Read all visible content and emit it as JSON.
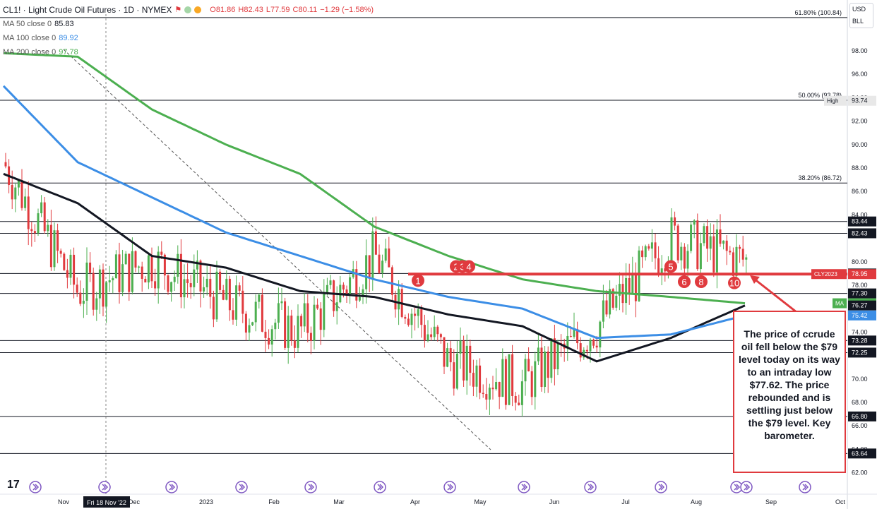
{
  "header": {
    "symbol": "CL1! · Light Crude Oil Futures · 1D · NYMEX",
    "open": "O81.86",
    "high": "H82.43",
    "low": "L77.59",
    "close": "C80.11",
    "change": "−1.29 (−1.58%)"
  },
  "indicators": [
    {
      "label": "MA 50 close 0",
      "value": "85.83",
      "color": "#131722"
    },
    {
      "label": "MA 100 close 0",
      "value": "89.92",
      "color": "#3c8ee6"
    },
    {
      "label": "MA 200 close 0",
      "value": "97.78",
      "color": "#4caf50"
    }
  ],
  "price_axis": {
    "currency": "USD",
    "unit": "BLL",
    "ticks": [
      "98.00",
      "96.00",
      "94.00",
      "92.00",
      "90.00",
      "88.00",
      "86.00",
      "84.00",
      "80.00",
      "78.00",
      "74.00",
      "70.00",
      "68.00",
      "66.00",
      "64.00",
      "62.00"
    ]
  },
  "time_axis": {
    "labels": [
      "Nov",
      "Dec",
      "2023",
      "Feb",
      "Mar",
      "Apr",
      "May",
      "Jun",
      "Jul",
      "Aug",
      "Sep",
      "Oct"
    ],
    "crosshair_label": "Fri 18 Nov '22"
  },
  "levels": [
    {
      "label": "61.80% (100.84)",
      "value": 100.84,
      "type": "fib"
    },
    {
      "label": "50.00% (93.78)",
      "value": 93.78,
      "type": "fib"
    },
    {
      "label": "38.20% (86.72)",
      "value": 86.72,
      "type": "fib"
    },
    {
      "label": "83.44",
      "value": 83.44,
      "type": "h"
    },
    {
      "label": "82.43",
      "value": 82.43,
      "type": "h"
    },
    {
      "label": "79.00",
      "value": 79.0,
      "type": "h"
    },
    {
      "label": "77.30",
      "value": 77.3,
      "type": "h"
    },
    {
      "label": "73.28",
      "value": 73.28,
      "type": "h"
    },
    {
      "label": "72.25",
      "value": 72.25,
      "type": "h"
    },
    {
      "label": "66.80",
      "value": 66.8,
      "type": "h"
    },
    {
      "label": "63.64",
      "value": 63.64,
      "type": "h"
    }
  ],
  "badges": [
    {
      "text": "High",
      "value": "93.74",
      "bg": "#e8e8e8",
      "fg": "#131722"
    },
    {
      "text": "CLY2023",
      "value": "78.95",
      "bg": "#e03a3e",
      "fg": "#ffffff"
    },
    {
      "text": "MA",
      "value": "76.46",
      "bg": "#4caf50",
      "fg": "#ffffff"
    },
    {
      "text": "",
      "value": "76.27",
      "bg": "#131722",
      "fg": "#ffffff"
    },
    {
      "text": "",
      "value": "75.42",
      "bg": "#3c8ee6",
      "fg": "#ffffff"
    }
  ],
  "touch_markers": [
    "1",
    "2",
    "3",
    "4",
    "5",
    "6",
    "8",
    "10"
  ],
  "annotation": "The price of ccrude oil fell below the $79 level today on its way to an intraday low $77.62. The price rebounded and is settling just below the $79 level. Key barometer.",
  "chart_data": {
    "type": "line",
    "title": "CL1! · Light Crude Oil Futures · 1D · NYMEX",
    "x": [
      "Nov",
      "Dec",
      "2023",
      "Feb",
      "Mar",
      "Apr",
      "May",
      "Jun",
      "Jul",
      "Aug",
      "Sep"
    ],
    "ylim": [
      62,
      102
    ],
    "series": [
      {
        "name": "CL1!",
        "values": [
          88.5,
          77.5,
          80.1,
          76.5,
          74.0,
          80.5,
          71.5,
          69.5,
          74.5,
          82.0,
          80.11
        ]
      },
      {
        "name": "MA 50 close 0",
        "values": [
          87.5,
          85.0,
          80.5,
          79.5,
          77.5,
          77.0,
          75.5,
          74.5,
          71.5,
          73.5,
          76.27
        ]
      },
      {
        "name": "MA 100 close 0",
        "values": [
          95.0,
          88.5,
          85.5,
          82.5,
          80.5,
          78.5,
          77.0,
          76.0,
          73.5,
          73.8,
          75.42
        ]
      },
      {
        "name": "MA 200 close 0",
        "values": [
          97.8,
          97.5,
          93.0,
          90.0,
          87.5,
          83.0,
          80.5,
          78.5,
          77.5,
          77.0,
          76.46
        ]
      }
    ],
    "grid": false,
    "legend": "top-left"
  }
}
